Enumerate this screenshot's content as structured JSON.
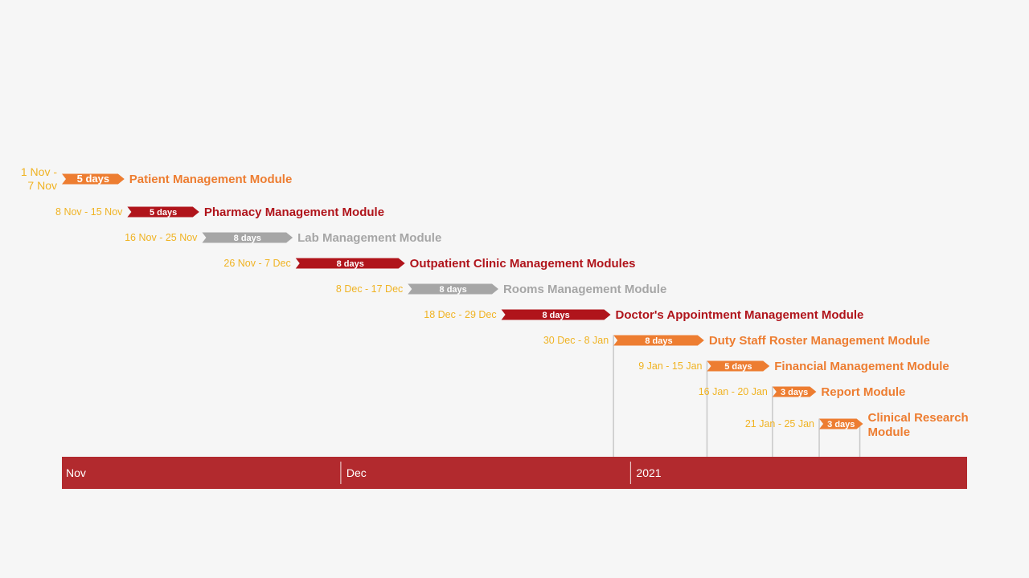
{
  "colors": {
    "orange": "#ed7d31",
    "dark_red": "#b0141b",
    "gray": "#a6a6a6",
    "date_label": "#f0b323",
    "timeline_band": "#b22a2e",
    "background": "#f6f6f6"
  },
  "chart_data": {
    "type": "gantt",
    "x_type": "date",
    "x_range": [
      "2020-11-01",
      "2021-02-14"
    ],
    "timeline": {
      "labels": [
        {
          "text": "Nov",
          "date": "2020-11-01"
        },
        {
          "text": "Dec",
          "date": "2020-12-01"
        },
        {
          "text": "2021",
          "date": "2021-01-01"
        }
      ]
    },
    "tasks": [
      {
        "name": "Patient Management Module",
        "start": "2020-11-01",
        "end": "2020-11-07",
        "date_label": [
          "1 Nov -",
          "7 Nov"
        ],
        "duration_label": "5 days",
        "color": "orange"
      },
      {
        "name": "Pharmacy Management Module",
        "start": "2020-11-08",
        "end": "2020-11-15",
        "date_label": [
          "8 Nov - 15 Nov"
        ],
        "duration_label": "5 days",
        "color": "dark_red"
      },
      {
        "name": "Lab Management Module",
        "start": "2020-11-16",
        "end": "2020-11-25",
        "date_label": [
          "16 Nov - 25 Nov"
        ],
        "duration_label": "8 days",
        "color": "gray"
      },
      {
        "name": "Outpatient Clinic Management Modules",
        "start": "2020-11-26",
        "end": "2020-12-07",
        "date_label": [
          "26 Nov - 7 Dec"
        ],
        "duration_label": "8 days",
        "color": "dark_red"
      },
      {
        "name": "Rooms Management Module",
        "start": "2020-12-08",
        "end": "2020-12-17",
        "date_label": [
          "8 Dec - 17 Dec"
        ],
        "duration_label": "8 days",
        "color": "gray"
      },
      {
        "name": "Doctor's Appointment Management Module",
        "start": "2020-12-18",
        "end": "2020-12-29",
        "date_label": [
          "18 Dec - 29 Dec"
        ],
        "duration_label": "8 days",
        "color": "dark_red"
      },
      {
        "name": "Duty Staff Roster Management Module",
        "start": "2020-12-30",
        "end": "2021-01-08",
        "date_label": [
          "30 Dec - 8 Jan"
        ],
        "duration_label": "8 days",
        "color": "orange"
      },
      {
        "name": "Financial Management Module",
        "start": "2021-01-09",
        "end": "2021-01-15",
        "date_label": [
          "9 Jan - 15 Jan"
        ],
        "duration_label": "5 days",
        "color": "orange"
      },
      {
        "name": "Report Module",
        "start": "2021-01-16",
        "end": "2021-01-20",
        "date_label": [
          "16 Jan - 20 Jan"
        ],
        "duration_label": "3 days",
        "color": "orange"
      },
      {
        "name": [
          "Clinical Research",
          "Module"
        ],
        "start": "2021-01-21",
        "end": "2021-01-25",
        "date_label": [
          "21 Jan - 25 Jan"
        ],
        "duration_label": "3 days",
        "color": "orange"
      }
    ]
  }
}
